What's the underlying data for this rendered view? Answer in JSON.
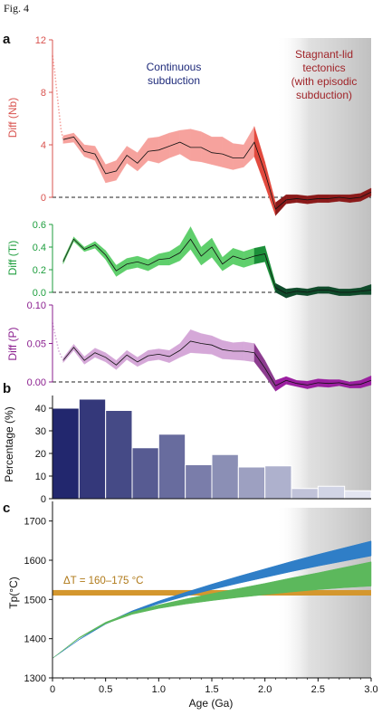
{
  "figure": {
    "caption": "Fig. 4",
    "panel_a": "a",
    "panel_b": "b",
    "panel_c": "c",
    "annotation_left": [
      "Continuous",
      "subduction"
    ],
    "annotation_right": [
      "Stagnant-lid",
      "tectonics",
      "(with episodic",
      "subduction)"
    ],
    "xlabel": "Age (Ga)",
    "delta_t_label": "ΔT = 160–175 °C"
  },
  "colors": {
    "nb": "#d9534f",
    "nb_band_young": "#f4a09c",
    "nb_band_old": "#8b1a1a",
    "ti": "#1e9e3e",
    "ti_band_young": "#5fc36b",
    "ti_band_old": "#0f4a2a",
    "p": "#8b1f8f",
    "p_band_young": "#d9b3dc",
    "p_band_old": "#9b1fa0",
    "bars_dark": "#22276e",
    "bars_light": "#e3e5f1",
    "annot_left": "#1e2a7a",
    "annot_right": "#a0252a",
    "blue_band": "#2f7ec7",
    "green_band": "#5cb85c",
    "orange_band": "#d4972e",
    "shade": "#c8c8c8"
  },
  "chart_data": [
    {
      "type": "area",
      "name": "Diff (Nb)",
      "ylabel": "Diff (Nb)",
      "ylim": [
        0,
        12
      ],
      "yticks": [
        0,
        4,
        8,
        12
      ],
      "xlim": [
        0,
        3.0
      ],
      "x": [
        0.1,
        0.2,
        0.3,
        0.4,
        0.5,
        0.6,
        0.7,
        0.8,
        0.9,
        1.0,
        1.1,
        1.2,
        1.3,
        1.4,
        1.5,
        1.6,
        1.7,
        1.8,
        1.9,
        2.0,
        2.1,
        2.2,
        2.3,
        2.4,
        2.5,
        2.6,
        2.7,
        2.8,
        2.9,
        3.0
      ],
      "mean": [
        4.4,
        4.6,
        3.5,
        3.3,
        1.8,
        2.0,
        3.2,
        2.6,
        3.5,
        3.6,
        3.9,
        4.2,
        3.8,
        3.8,
        3.4,
        3.3,
        3.0,
        3.0,
        4.2,
        1.9,
        -0.9,
        -0.2,
        -0.1,
        -0.2,
        -0.1,
        -0.1,
        0.0,
        -0.1,
        0.0,
        0.4
      ],
      "upper": [
        4.7,
        4.9,
        4.0,
        3.9,
        2.5,
        2.8,
        3.9,
        3.4,
        4.5,
        4.6,
        4.9,
        5.1,
        5.2,
        5.0,
        4.6,
        4.6,
        4.1,
        4.0,
        5.4,
        2.7,
        -0.4,
        0.2,
        0.2,
        0.1,
        0.2,
        0.2,
        0.2,
        0.2,
        0.3,
        0.7
      ],
      "lower": [
        4.1,
        4.2,
        3.1,
        2.8,
        1.1,
        1.3,
        2.6,
        2.0,
        2.8,
        2.6,
        3.0,
        3.3,
        2.8,
        2.7,
        2.5,
        2.3,
        2.1,
        2.3,
        3.1,
        0.9,
        -1.4,
        -0.5,
        -0.4,
        -0.5,
        -0.4,
        -0.4,
        -0.3,
        -0.4,
        -0.3,
        0.1
      ],
      "dotted_x": [
        0.0,
        0.02,
        0.04,
        0.06,
        0.08,
        0.1
      ],
      "dotted_y": [
        10.8,
        9.6,
        8.1,
        6.6,
        5.2,
        4.4
      ]
    },
    {
      "type": "area",
      "name": "Diff (Ti)",
      "ylabel": "Diff (Ti)",
      "ylim": [
        0,
        0.6
      ],
      "yticks": [
        0.0,
        0.2,
        0.4,
        0.6
      ],
      "ytick_labels": [
        "0.0",
        "0.2",
        "0.4",
        "0.6"
      ],
      "xlim": [
        0,
        3.0
      ],
      "x": [
        0.1,
        0.2,
        0.3,
        0.4,
        0.5,
        0.6,
        0.7,
        0.8,
        0.9,
        1.0,
        1.1,
        1.2,
        1.3,
        1.4,
        1.5,
        1.6,
        1.7,
        1.8,
        1.9,
        2.0,
        2.1,
        2.2,
        2.3,
        2.4,
        2.5,
        2.6,
        2.7,
        2.8,
        2.9,
        3.0
      ],
      "mean": [
        0.27,
        0.47,
        0.38,
        0.42,
        0.33,
        0.19,
        0.25,
        0.27,
        0.24,
        0.29,
        0.3,
        0.35,
        0.47,
        0.32,
        0.4,
        0.25,
        0.32,
        0.29,
        0.32,
        0.34,
        0.04,
        -0.01,
        0.01,
        0.0,
        0.02,
        0.02,
        0.0,
        0.0,
        0.01,
        0.02
      ],
      "upper": [
        0.29,
        0.49,
        0.4,
        0.45,
        0.37,
        0.24,
        0.3,
        0.32,
        0.29,
        0.34,
        0.36,
        0.42,
        0.58,
        0.4,
        0.48,
        0.31,
        0.39,
        0.36,
        0.39,
        0.41,
        0.08,
        0.03,
        0.04,
        0.03,
        0.05,
        0.05,
        0.03,
        0.03,
        0.04,
        0.07
      ],
      "lower": [
        0.25,
        0.45,
        0.36,
        0.39,
        0.29,
        0.14,
        0.2,
        0.22,
        0.19,
        0.24,
        0.24,
        0.28,
        0.38,
        0.24,
        0.31,
        0.19,
        0.25,
        0.22,
        0.25,
        0.27,
        0.0,
        -0.05,
        -0.02,
        -0.03,
        -0.01,
        -0.01,
        -0.03,
        -0.03,
        -0.02,
        -0.02
      ]
    },
    {
      "type": "area",
      "name": "Diff (P)",
      "ylabel": "Diff (P)",
      "ylim": [
        0,
        0.1
      ],
      "yticks": [
        0.0,
        0.05,
        0.1
      ],
      "ytick_labels": [
        "0.00",
        "0.05",
        "0.10"
      ],
      "xlim": [
        0,
        3.0
      ],
      "x": [
        0.1,
        0.2,
        0.3,
        0.4,
        0.5,
        0.6,
        0.7,
        0.8,
        0.9,
        1.0,
        1.1,
        1.2,
        1.3,
        1.4,
        1.5,
        1.6,
        1.7,
        1.8,
        1.9,
        2.0,
        2.1,
        2.2,
        2.3,
        2.4,
        2.5,
        2.6,
        2.7,
        2.8,
        2.9,
        3.0
      ],
      "mean": [
        0.028,
        0.045,
        0.028,
        0.038,
        0.032,
        0.022,
        0.035,
        0.026,
        0.034,
        0.036,
        0.033,
        0.041,
        0.053,
        0.05,
        0.048,
        0.042,
        0.04,
        0.04,
        0.038,
        0.018,
        -0.005,
        0.002,
        -0.002,
        -0.004,
        -0.001,
        -0.002,
        -0.001,
        -0.004,
        -0.003,
        0.002
      ],
      "upper": [
        0.031,
        0.049,
        0.033,
        0.044,
        0.038,
        0.028,
        0.041,
        0.032,
        0.041,
        0.043,
        0.041,
        0.05,
        0.068,
        0.063,
        0.06,
        0.054,
        0.051,
        0.052,
        0.05,
        0.028,
        0.002,
        0.007,
        0.002,
        0.001,
        0.004,
        0.003,
        0.003,
        0.0,
        0.002,
        0.008
      ],
      "lower": [
        0.025,
        0.041,
        0.023,
        0.032,
        0.026,
        0.016,
        0.029,
        0.02,
        0.027,
        0.029,
        0.025,
        0.032,
        0.038,
        0.037,
        0.036,
        0.03,
        0.029,
        0.028,
        0.026,
        0.008,
        -0.012,
        -0.003,
        -0.006,
        -0.009,
        -0.006,
        -0.007,
        -0.005,
        -0.008,
        -0.008,
        -0.004
      ],
      "dotted_x": [
        0.0,
        0.03,
        0.06,
        0.1
      ],
      "dotted_y": [
        0.077,
        0.058,
        0.04,
        0.028
      ]
    },
    {
      "type": "bar",
      "name": "Percentage (%)",
      "ylabel": "Percentage (%)",
      "ylim": [
        0,
        48
      ],
      "yticks": [
        0,
        10,
        20,
        30,
        40
      ],
      "xlim": [
        0,
        3.0
      ],
      "bin_width": 0.25,
      "bin_starts": [
        0.0,
        0.25,
        0.5,
        0.75,
        1.0,
        1.25,
        1.5,
        1.75,
        2.0,
        2.25,
        2.5,
        2.75
      ],
      "values": [
        40,
        44,
        39,
        22.5,
        28.5,
        15,
        19.5,
        14,
        14.5,
        4.5,
        5.5,
        3.5
      ]
    },
    {
      "type": "area",
      "name": "Tp",
      "ylabel": "Tp(°C)",
      "ylim": [
        1300,
        1750
      ],
      "yticks": [
        1300,
        1400,
        1500,
        1600,
        1700
      ],
      "xlim": [
        0,
        3.0
      ],
      "xticks": [
        0,
        0.5,
        1.0,
        1.5,
        2.0,
        2.5,
        3.0
      ],
      "xtick_labels": [
        "0",
        "0.5",
        "1.0",
        "1.5",
        "2.0",
        "2.5",
        "3.0"
      ],
      "xlabel": "Age (Ga)",
      "x": [
        0.0,
        0.25,
        0.5,
        0.75,
        1.0,
        1.25,
        1.5,
        1.75,
        2.0,
        2.25,
        2.5,
        2.75,
        3.0
      ],
      "blue_lower": [
        1350,
        1397,
        1437,
        1466,
        1489,
        1508,
        1525,
        1541,
        1556,
        1571,
        1585,
        1598,
        1611
      ],
      "blue_upper": [
        1350,
        1398,
        1440,
        1471,
        1496,
        1518,
        1539,
        1559,
        1578,
        1597,
        1615,
        1632,
        1649
      ],
      "green_lower": [
        1350,
        1401,
        1438,
        1462,
        1477,
        1488,
        1497,
        1505,
        1512,
        1519,
        1525,
        1530,
        1534
      ],
      "green_upper": [
        1350,
        1403,
        1442,
        1468,
        1486,
        1501,
        1515,
        1528,
        1541,
        1555,
        1568,
        1582,
        1596
      ],
      "delta_band": [
        1510,
        1524
      ]
    }
  ]
}
